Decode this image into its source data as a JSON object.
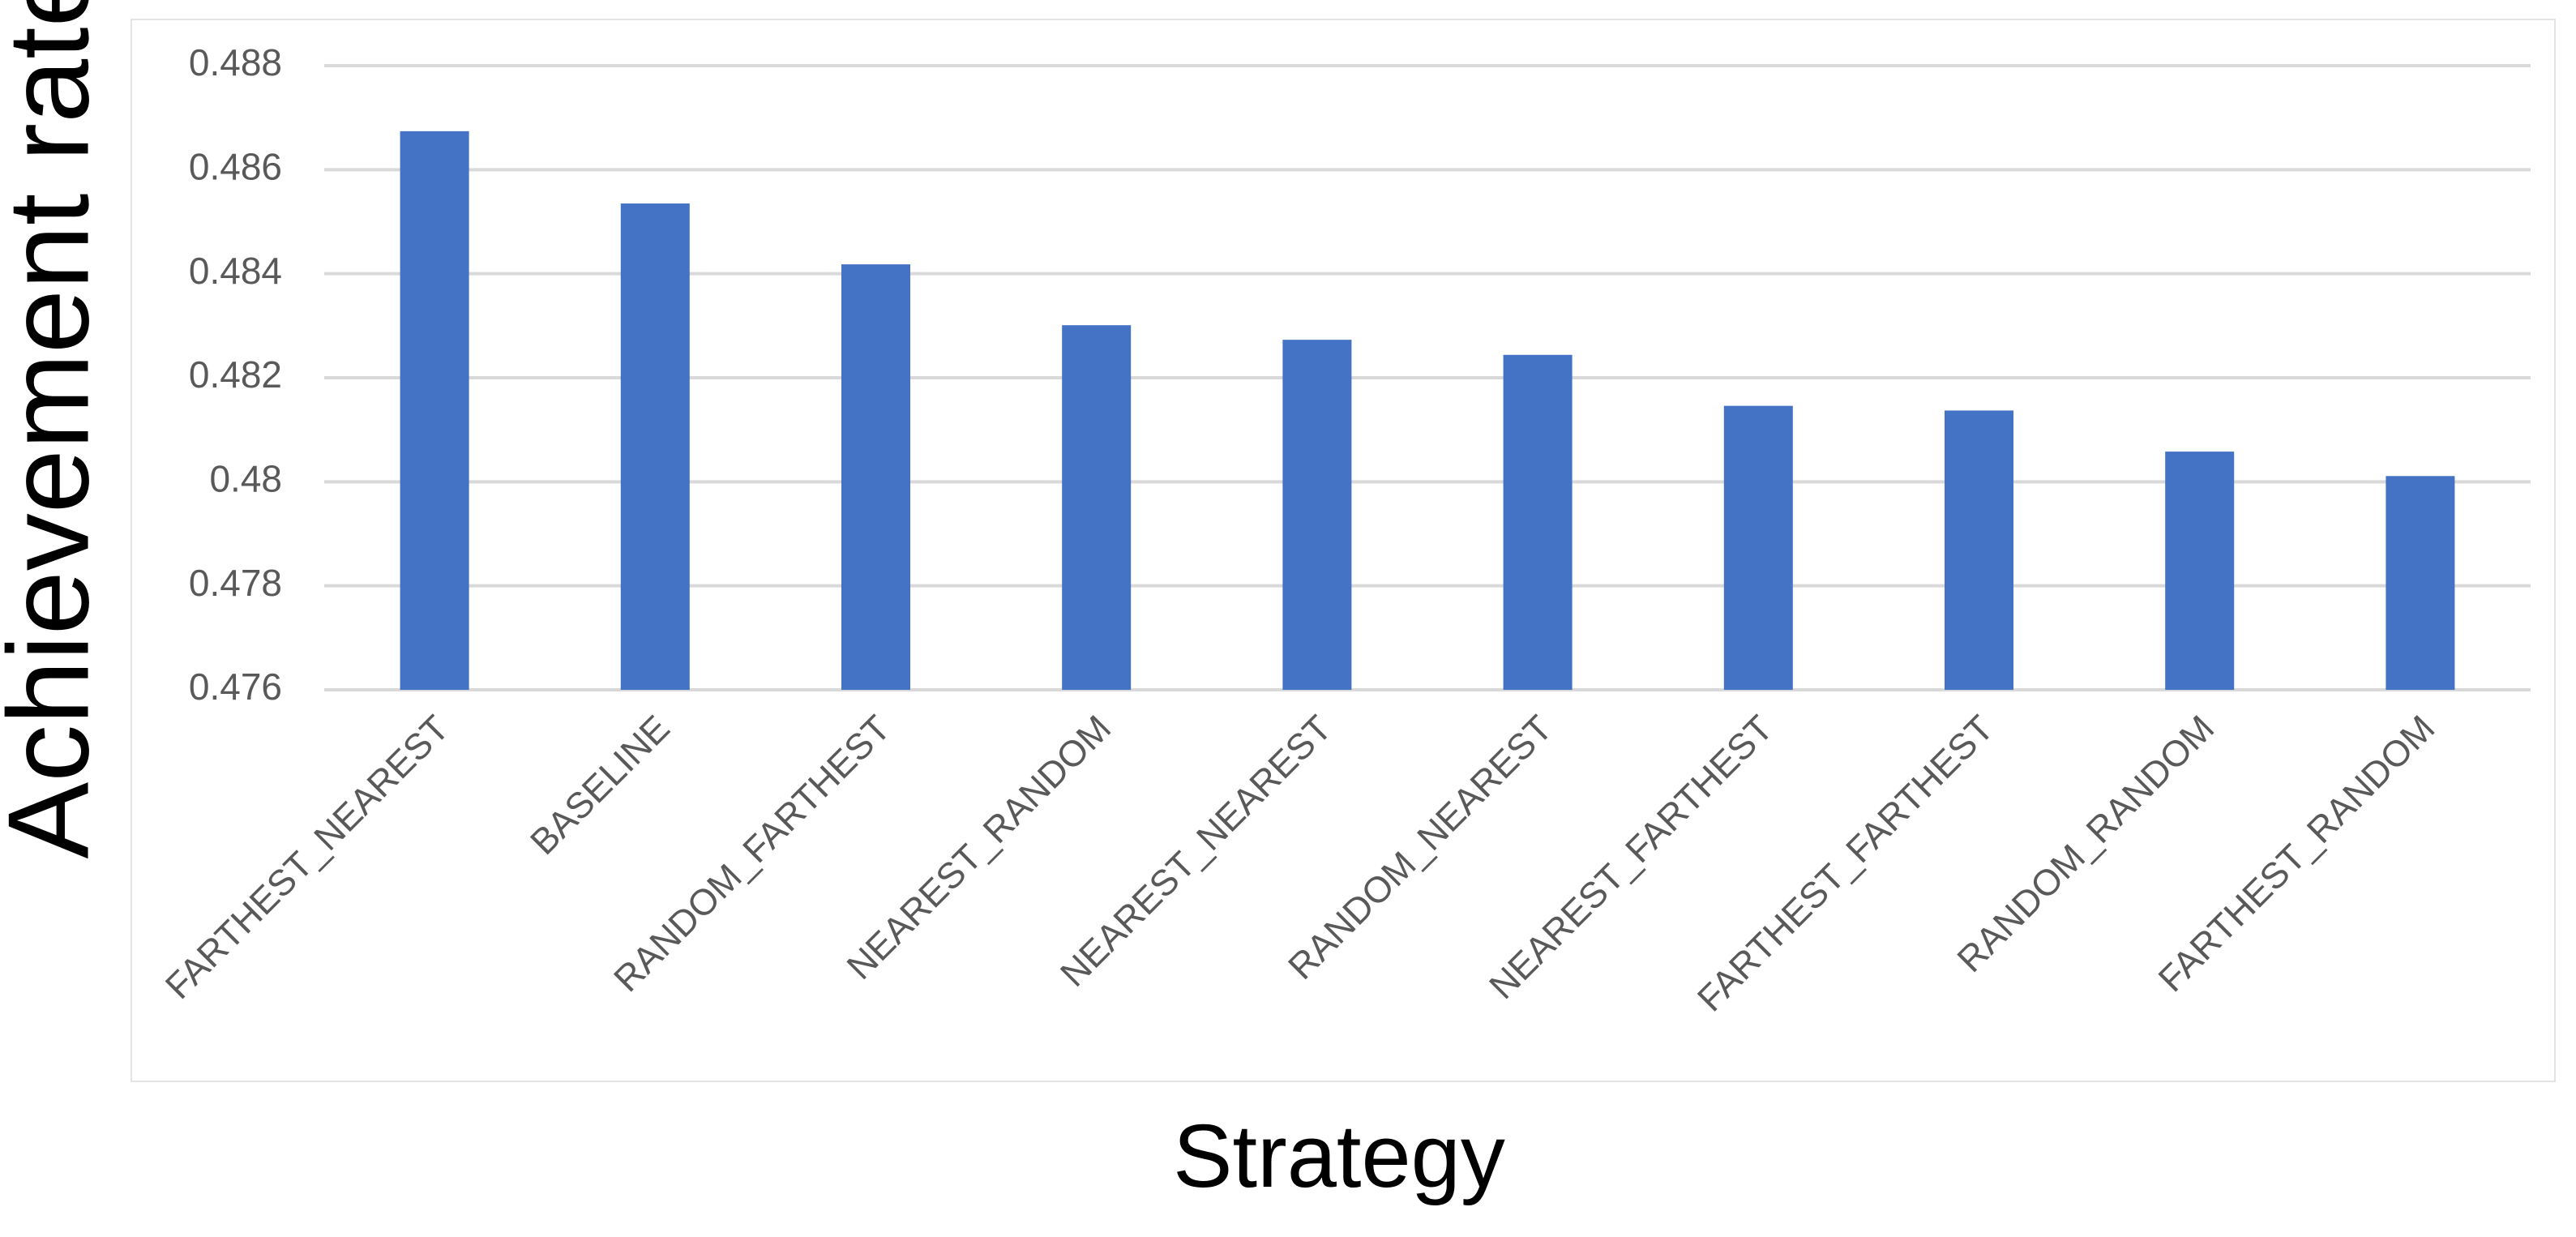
{
  "chart_data": {
    "type": "bar",
    "y_label": "Achievement rate",
    "x_label": "Strategy",
    "categories": [
      "FARTHEST_NEAREST",
      "BASELINE",
      "RANDOM_FARTHEST",
      "NEAREST_RANDOM",
      "NEAREST_NEAREST",
      "RANDOM_NEAREST",
      "NEAREST_FARTHEST",
      "FARTHEST_FARTHEST",
      "RANDOM_RANDOM",
      "FARTHEST_RANDOM"
    ],
    "values": [
      0.48674,
      0.48535,
      0.48418,
      0.48301,
      0.48273,
      0.48244,
      0.48146,
      0.48137,
      0.48058,
      0.48011
    ],
    "color": "#4472c4",
    "ylim": [
      0.476,
      0.488
    ],
    "yticks": [
      0.476,
      0.478,
      0.48,
      0.482,
      0.484,
      0.486,
      0.488
    ],
    "grid": true
  }
}
